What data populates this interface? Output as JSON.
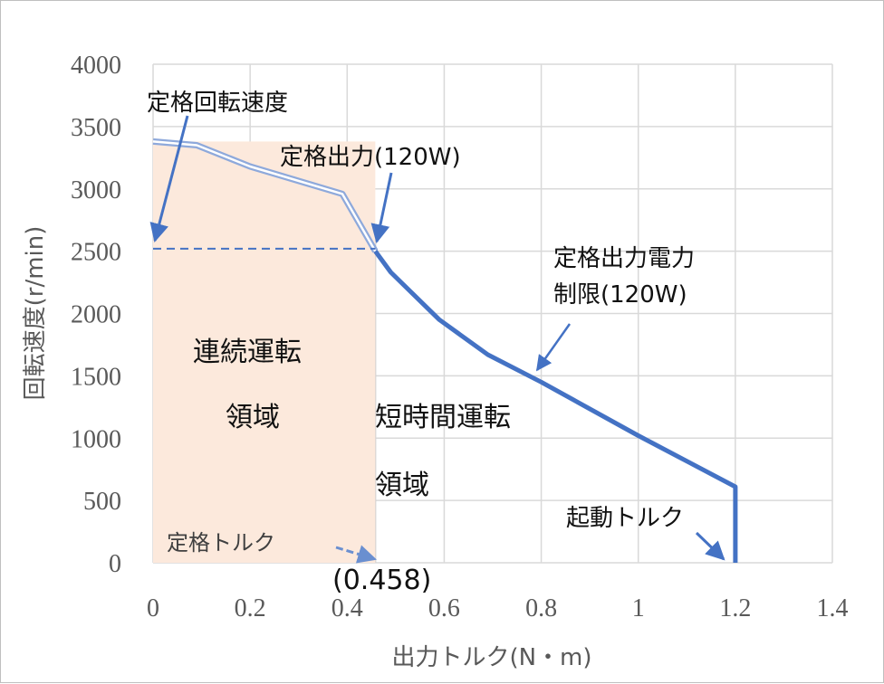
{
  "chart_data": {
    "type": "line",
    "xlabel": "出力トルク(N・m)",
    "ylabel": "回転速度(r/min)",
    "xlim": [
      0,
      1.4
    ],
    "ylim": [
      0,
      4000
    ],
    "xticks": [
      "0",
      "0.2",
      "0.4",
      "0.6",
      "0.8",
      "1",
      "1.2",
      "1.4"
    ],
    "yticks": [
      "0",
      "500",
      "1000",
      "1500",
      "2000",
      "2500",
      "3000",
      "3500",
      "4000"
    ],
    "grid": true,
    "legend": "none",
    "series": [
      {
        "style": "double-line",
        "color": "#8ea9db",
        "points": [
          [
            0,
            3380
          ],
          [
            0.09,
            3350
          ],
          [
            0.2,
            3180
          ],
          [
            0.39,
            2960
          ],
          [
            0.458,
            2500
          ]
        ]
      },
      {
        "style": "thick-line",
        "color": "#4472c4",
        "points": [
          [
            0.458,
            2500
          ],
          [
            0.49,
            2330
          ],
          [
            0.59,
            1950
          ],
          [
            0.69,
            1670
          ],
          [
            0.8,
            1450
          ],
          [
            1.0,
            1020
          ],
          [
            1.2,
            610
          ],
          [
            1.2,
            0
          ]
        ]
      },
      {
        "style": "dashed",
        "color": "#4472c4",
        "points": [
          [
            0,
            2520
          ],
          [
            0.458,
            2520
          ]
        ]
      }
    ],
    "continuous_region": {
      "x": [
        0,
        0.458
      ],
      "y": [
        0,
        3380
      ],
      "fill": "#fce9dc"
    },
    "annotations": {
      "rated_speed": "定格回転速度",
      "rated_output": "定格出力(120W)",
      "power_limit_line1": "定格出力電力",
      "power_limit_line2": "制限(120W)",
      "continuous_line1": "連続運転",
      "continuous_line2": "領域",
      "short_time_line1": "短時間運転",
      "short_time_line2": "領域",
      "rated_torque": "定格トルク",
      "rated_torque_value": "(0.458)",
      "starting_torque": "起動トルク"
    }
  }
}
